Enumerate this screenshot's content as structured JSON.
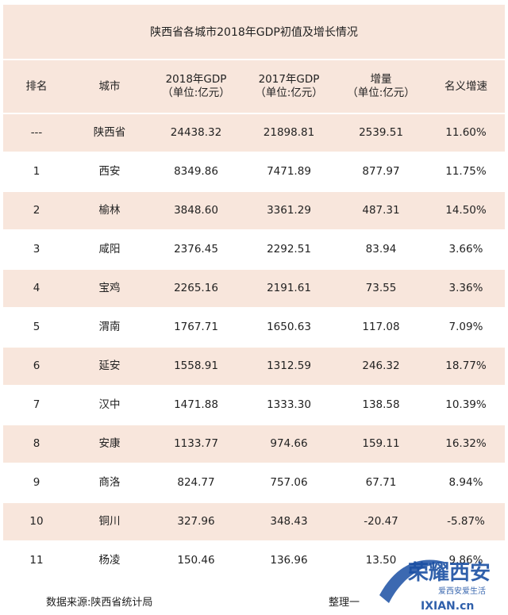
{
  "title": "陕西省各城市2018年GDP初值及增长情况",
  "headers": [
    {
      "line1": "排名",
      "line2": ""
    },
    {
      "line1": "城市",
      "line2": ""
    },
    {
      "line1": "2018年GDP",
      "line2": "（单位:亿元）"
    },
    {
      "line1": "2017年GDP",
      "line2": "（单位:亿元）"
    },
    {
      "line1": "增量",
      "line2": "（单位:亿元）"
    },
    {
      "line1": "名义增速",
      "line2": ""
    }
  ],
  "rows": [
    {
      "rank": "---",
      "city": "陕西省",
      "gdp2018": "24438.32",
      "gdp2017": "21898.81",
      "increase": "2539.51",
      "growth": "11.60%"
    },
    {
      "rank": "1",
      "city": "西安",
      "gdp2018": "8349.86",
      "gdp2017": "7471.89",
      "increase": "877.97",
      "growth": "11.75%"
    },
    {
      "rank": "2",
      "city": "榆林",
      "gdp2018": "3848.60",
      "gdp2017": "3361.29",
      "increase": "487.31",
      "growth": "14.50%"
    },
    {
      "rank": "3",
      "city": "咸阳",
      "gdp2018": "2376.45",
      "gdp2017": "2292.51",
      "increase": "83.94",
      "growth": "3.66%"
    },
    {
      "rank": "4",
      "city": "宝鸡",
      "gdp2018": "2265.16",
      "gdp2017": "2191.61",
      "increase": "73.55",
      "growth": "3.36%"
    },
    {
      "rank": "5",
      "city": "渭南",
      "gdp2018": "1767.71",
      "gdp2017": "1650.63",
      "increase": "117.08",
      "growth": "7.09%"
    },
    {
      "rank": "6",
      "city": "延安",
      "gdp2018": "1558.91",
      "gdp2017": "1312.59",
      "increase": "246.32",
      "growth": "18.77%"
    },
    {
      "rank": "7",
      "city": "汉中",
      "gdp2018": "1471.88",
      "gdp2017": "1333.30",
      "increase": "138.58",
      "growth": "10.39%"
    },
    {
      "rank": "8",
      "city": "安康",
      "gdp2018": "1133.77",
      "gdp2017": "974.66",
      "increase": "159.11",
      "growth": "16.32%"
    },
    {
      "rank": "9",
      "city": "商洛",
      "gdp2018": "824.77",
      "gdp2017": "757.06",
      "increase": "67.71",
      "growth": "8.94%"
    },
    {
      "rank": "10",
      "city": "铜川",
      "gdp2018": "327.96",
      "gdp2017": "348.43",
      "increase": "-20.47",
      "growth": "-5.87%"
    },
    {
      "rank": "11",
      "city": "杨凌",
      "gdp2018": "150.46",
      "gdp2017": "136.96",
      "increase": "13.50",
      "growth": "9.86%"
    }
  ],
  "footer": {
    "source": "数据来源:陕西省统计局",
    "compiler": "整理一"
  },
  "watermark": {
    "main_text": "荣耀西安",
    "sub_text": "爱西安爱生活",
    "url_text": "IXIAN.cn"
  },
  "colors": {
    "row_shade": "#f8e6dc",
    "text": "#222222",
    "watermark_blue": "#1a4fa3"
  }
}
